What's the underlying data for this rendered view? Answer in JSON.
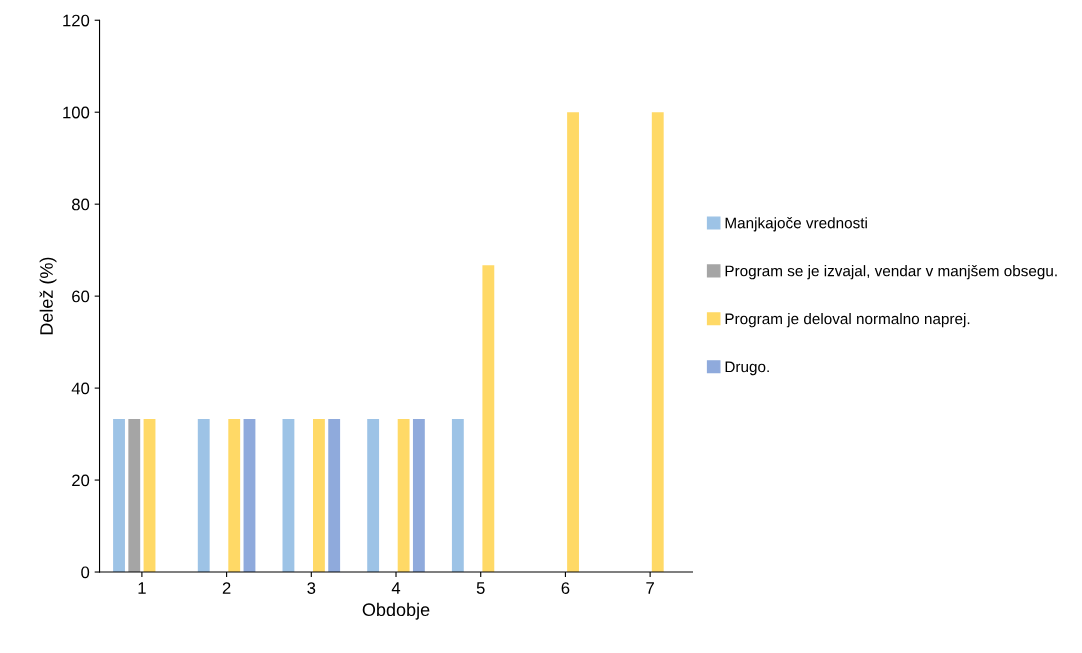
{
  "chart_data": {
    "type": "bar",
    "xlabel": "Obdobje",
    "ylabel": "Delež (%)",
    "categories": [
      "1",
      "2",
      "3",
      "4",
      "5",
      "6",
      "7"
    ],
    "series": [
      {
        "name": "Manjkajoče vrednosti",
        "color": "#9dc3e6",
        "values": [
          33.3,
          33.3,
          33.3,
          33.3,
          33.3,
          null,
          null
        ]
      },
      {
        "name": "Program se je izvajal, vendar v manjšem obsegu.",
        "color": "#a5a5a5",
        "values": [
          33.3,
          null,
          null,
          null,
          null,
          null,
          null
        ]
      },
      {
        "name": "Program je deloval normalno naprej.",
        "color": "#ffd966",
        "values": [
          33.3,
          33.3,
          33.3,
          33.3,
          66.7,
          100,
          100
        ]
      },
      {
        "name": "Drugo.",
        "color": "#8faadc",
        "values": [
          null,
          33.3,
          33.3,
          33.3,
          null,
          null,
          null
        ]
      }
    ],
    "ylim": [
      0,
      120
    ],
    "yticks": [
      0,
      20,
      40,
      60,
      80,
      100,
      120
    ],
    "grid": false,
    "legend": "right"
  }
}
